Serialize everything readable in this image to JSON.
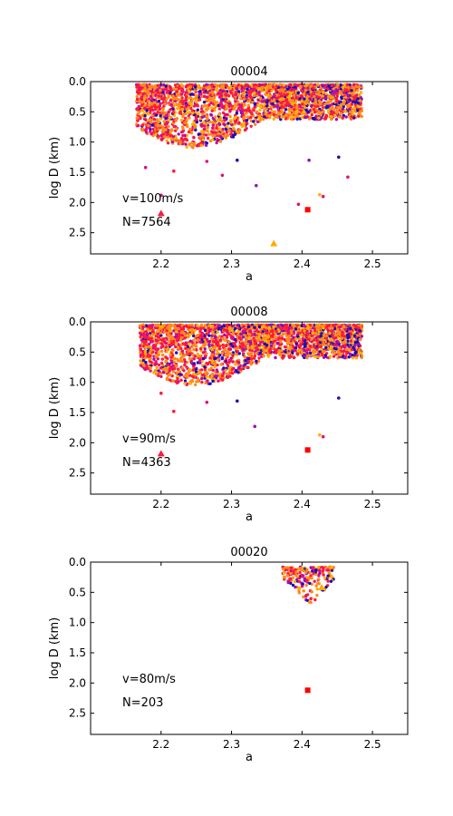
{
  "colors": {
    "blue": "#1a0db8",
    "purple": "#9b10b8",
    "magenta": "#e0107a",
    "red": "#ff1a3a",
    "orange": "#ff8a1a",
    "yellow": "#ffb000",
    "marker_square": "#ff0000",
    "marker_triangle_red": "#ff1a3a",
    "marker_triangle_yellow": "#ffaa00"
  },
  "chart_data": [
    {
      "type": "scatter",
      "title": "00004",
      "xlabel": "a",
      "ylabel": "log D (km)",
      "xlim": [
        2.1,
        2.55
      ],
      "ylim": [
        0.0,
        2.85
      ],
      "y_inverted": true,
      "xticks": [
        2.2,
        2.3,
        2.4,
        2.5
      ],
      "xtick_labels": [
        "2.2",
        "2.3",
        "2.4",
        "2.5"
      ],
      "yticks": [
        0.0,
        0.5,
        1.0,
        1.5,
        2.0,
        2.5
      ],
      "ytick_labels": [
        "0.0",
        "0.5",
        "1.0",
        "1.5",
        "2.0",
        "2.5"
      ],
      "annotations": [
        "v=100m/s",
        "N=7564"
      ],
      "cluster": {
        "x_range": [
          2.165,
          2.485
        ],
        "y_range": [
          0.05,
          1.1
        ],
        "count_shown": 7564
      },
      "markers": [
        {
          "shape": "square",
          "color": "red",
          "x": 2.408,
          "y": 2.12
        },
        {
          "shape": "triangle",
          "color": "red",
          "x": 2.2,
          "y": 2.18
        },
        {
          "shape": "triangle",
          "color": "yellow",
          "x": 2.36,
          "y": 2.68
        }
      ],
      "outliers": [
        {
          "x": 2.2,
          "y": 1.88,
          "c": "magenta"
        },
        {
          "x": 2.425,
          "y": 1.87,
          "c": "yellow"
        },
        {
          "x": 2.43,
          "y": 1.9,
          "c": "magenta"
        },
        {
          "x": 2.395,
          "y": 2.03,
          "c": "magenta"
        },
        {
          "x": 2.335,
          "y": 1.72,
          "c": "purple"
        },
        {
          "x": 2.287,
          "y": 1.55,
          "c": "magenta"
        },
        {
          "x": 2.465,
          "y": 1.58,
          "c": "magenta"
        },
        {
          "x": 2.178,
          "y": 1.42,
          "c": "magenta"
        },
        {
          "x": 2.218,
          "y": 1.48,
          "c": "red"
        },
        {
          "x": 2.452,
          "y": 1.25,
          "c": "blue"
        },
        {
          "x": 2.308,
          "y": 1.3,
          "c": "blue"
        },
        {
          "x": 2.265,
          "y": 1.32,
          "c": "magenta"
        },
        {
          "x": 2.41,
          "y": 1.3,
          "c": "purple"
        }
      ]
    },
    {
      "type": "scatter",
      "title": "00008",
      "xlabel": "a",
      "ylabel": "log D (km)",
      "xlim": [
        2.1,
        2.55
      ],
      "ylim": [
        0.0,
        2.85
      ],
      "y_inverted": true,
      "xticks": [
        2.2,
        2.3,
        2.4,
        2.5
      ],
      "xtick_labels": [
        "2.2",
        "2.3",
        "2.4",
        "2.5"
      ],
      "yticks": [
        0.0,
        0.5,
        1.0,
        1.5,
        2.0,
        2.5
      ],
      "ytick_labels": [
        "0.0",
        "0.5",
        "1.0",
        "1.5",
        "2.0",
        "2.5"
      ],
      "annotations": [
        "v=90m/s",
        "N=4363"
      ],
      "cluster": {
        "x_range": [
          2.17,
          2.485
        ],
        "y_range": [
          0.05,
          1.05
        ],
        "count_shown": 4363
      },
      "markers": [
        {
          "shape": "square",
          "color": "red",
          "x": 2.408,
          "y": 2.12
        },
        {
          "shape": "triangle",
          "color": "red",
          "x": 2.2,
          "y": 2.18
        }
      ],
      "outliers": [
        {
          "x": 2.425,
          "y": 1.87,
          "c": "yellow"
        },
        {
          "x": 2.43,
          "y": 1.9,
          "c": "magenta"
        },
        {
          "x": 2.333,
          "y": 1.73,
          "c": "purple"
        },
        {
          "x": 2.218,
          "y": 1.48,
          "c": "red"
        },
        {
          "x": 2.452,
          "y": 1.26,
          "c": "blue"
        },
        {
          "x": 2.308,
          "y": 1.31,
          "c": "blue"
        },
        {
          "x": 2.265,
          "y": 1.33,
          "c": "magenta"
        },
        {
          "x": 2.2,
          "y": 1.18,
          "c": "red"
        }
      ]
    },
    {
      "type": "scatter",
      "title": "00020",
      "xlabel": "a",
      "ylabel": "log D (km)",
      "xlim": [
        2.1,
        2.55
      ],
      "ylim": [
        0.0,
        2.85
      ],
      "y_inverted": true,
      "xticks": [
        2.2,
        2.3,
        2.4,
        2.5
      ],
      "xtick_labels": [
        "2.2",
        "2.3",
        "2.4",
        "2.5"
      ],
      "yticks": [
        0.0,
        0.5,
        1.0,
        1.5,
        2.0,
        2.5
      ],
      "ytick_labels": [
        "0.0",
        "0.5",
        "1.0",
        "1.5",
        "2.0",
        "2.5"
      ],
      "annotations": [
        "v=80m/s",
        "N=203"
      ],
      "cluster": {
        "x_range": [
          2.372,
          2.445
        ],
        "y_range": [
          0.08,
          0.7
        ],
        "count_shown": 203
      },
      "markers": [
        {
          "shape": "square",
          "color": "red",
          "x": 2.408,
          "y": 2.12
        },
        {
          "shape": "triangle",
          "color": "yellow",
          "x": 2.428,
          "y": 0.42
        }
      ],
      "outliers": []
    }
  ]
}
